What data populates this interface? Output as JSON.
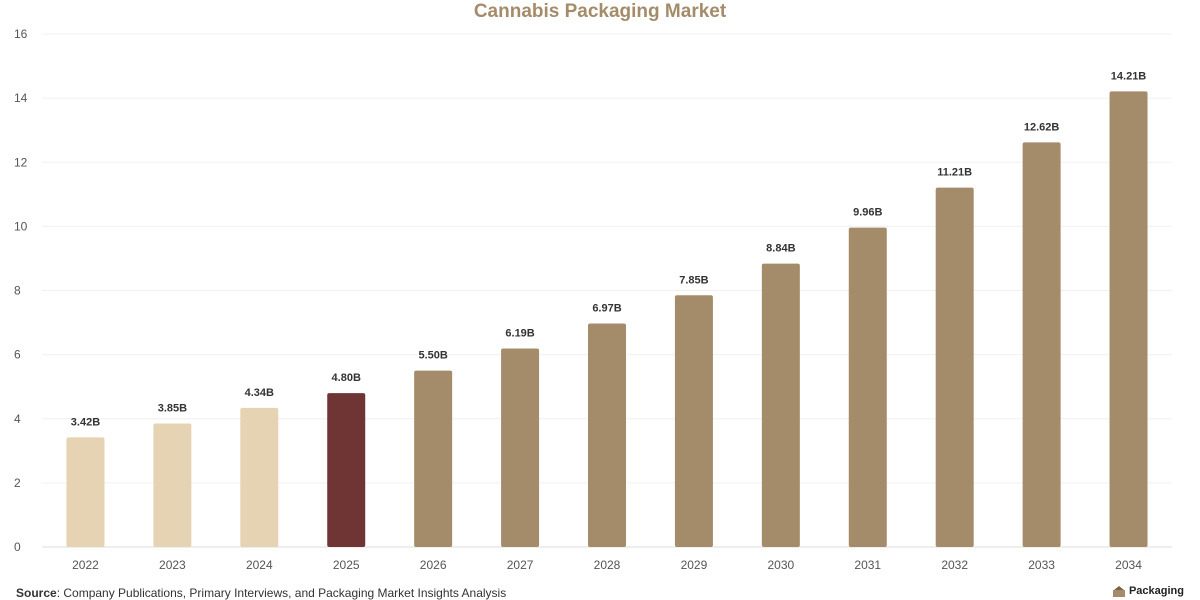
{
  "chart_data": {
    "type": "bar",
    "title": "Cannabis Packaging Market",
    "categories": [
      "2022",
      "2023",
      "2024",
      "2025",
      "2026",
      "2027",
      "2028",
      "2029",
      "2030",
      "2031",
      "2032",
      "2033",
      "2034"
    ],
    "values": [
      3.42,
      3.85,
      4.34,
      4.8,
      5.5,
      6.19,
      6.97,
      7.85,
      8.84,
      9.96,
      11.21,
      12.62,
      14.21
    ],
    "data_labels": [
      "3.42B",
      "3.85B",
      "4.34B",
      "4.80B",
      "5.50B",
      "6.19B",
      "6.97B",
      "7.85B",
      "8.84B",
      "9.96B",
      "11.21B",
      "12.62B",
      "14.21B"
    ],
    "bar_colors": [
      "#e6d3b3",
      "#e6d3b3",
      "#e6d3b3",
      "#6f3535",
      "#a48c6a",
      "#a48c6a",
      "#a48c6a",
      "#a48c6a",
      "#a48c6a",
      "#a48c6a",
      "#a48c6a",
      "#a48c6a",
      "#a48c6a"
    ],
    "y_ticks": [
      "0",
      "2",
      "4",
      "6",
      "8",
      "10",
      "12",
      "14",
      "16"
    ],
    "ylim": [
      0,
      16
    ],
    "xlabel": "",
    "ylabel": "",
    "grid": true,
    "legend": "none"
  },
  "footer": {
    "source_label": "Source",
    "source_text": ": Company Publications, Primary Interviews, and Packaging Market Insights Analysis",
    "brand_name": "Packaging"
  },
  "colors": {
    "title": "#a48c6a",
    "historic": "#e6d3b3",
    "current": "#6f3535",
    "forecast": "#a48c6a"
  }
}
